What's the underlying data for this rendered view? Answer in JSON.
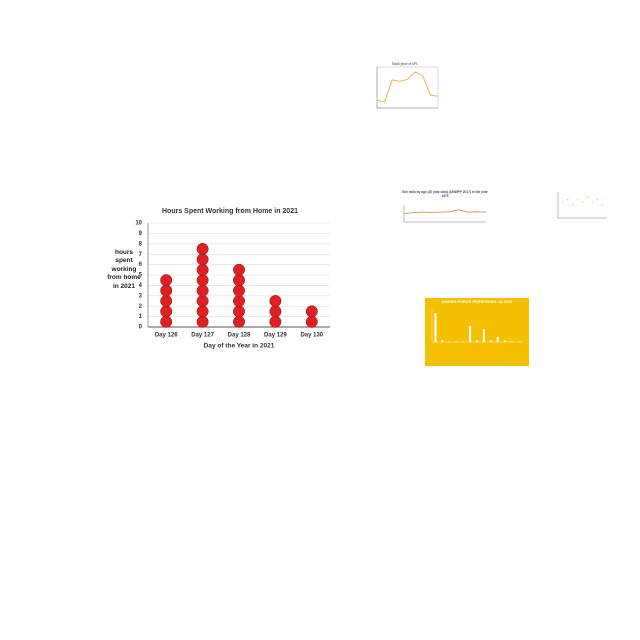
{
  "chart_data": [
    {
      "type": "dot",
      "title": "Hours Spent Working from Home in 2021",
      "x_label": "Day of the Year in 2021",
      "y_label": "hours spent working from home in 2021",
      "categories": [
        "Day 126",
        "Day 127",
        "Day 128",
        "Day 129",
        "Day 130"
      ],
      "values": [
        5,
        8,
        6,
        3,
        2
      ],
      "color": "#e02020",
      "ylim": [
        0,
        10
      ],
      "yticks": [
        0,
        1,
        2,
        3,
        4,
        5,
        6,
        7,
        8,
        9,
        10
      ],
      "grid": true
    },
    {
      "type": "line",
      "title": "Stock price of UPL",
      "x": [
        0,
        1,
        2,
        3,
        4,
        5,
        6,
        7,
        8
      ],
      "values": [
        1.5,
        1.2,
        5.5,
        5.2,
        5.6,
        7,
        6.3,
        2.5,
        2.3
      ],
      "color": "#f0a030",
      "xlim": [
        0,
        8
      ],
      "ylim": [
        0,
        8
      ],
      "grid": false
    },
    {
      "type": "line",
      "title": "Sex ratio by age (20 year olds) (UNWPP 2017) in the year 1975",
      "x": [
        0,
        1,
        2,
        3,
        4,
        5,
        6,
        7,
        8,
        9
      ],
      "values": [
        0.5,
        0.55,
        0.58,
        0.56,
        0.58,
        0.6,
        0.72,
        0.58,
        0.6,
        0.58
      ],
      "color": "#c8863a",
      "xlim": [
        0,
        9
      ],
      "ylim": [
        0,
        1
      ],
      "grid": false
    },
    {
      "type": "scatter",
      "x": [
        1,
        2,
        3,
        4,
        5,
        6,
        7,
        8,
        9
      ],
      "values": [
        6,
        7,
        5,
        7,
        6,
        8,
        6,
        7,
        5
      ],
      "color": "#e8c060",
      "xlim": [
        0,
        10
      ],
      "ylim": [
        0,
        10
      ],
      "grid": true
    },
    {
      "type": "bar",
      "title": "ARMED FORCE PERSONNEL IN 2016",
      "categories": [
        null,
        null,
        null,
        null,
        null,
        null,
        null,
        null,
        null,
        null,
        null,
        null,
        null
      ],
      "values": [
        18,
        1,
        0.3,
        0.3,
        0.3,
        10,
        1,
        8,
        1,
        3,
        1,
        0.5,
        0.3
      ],
      "color": "#ffffff",
      "ylim": [
        0,
        20
      ],
      "grid": false
    }
  ]
}
